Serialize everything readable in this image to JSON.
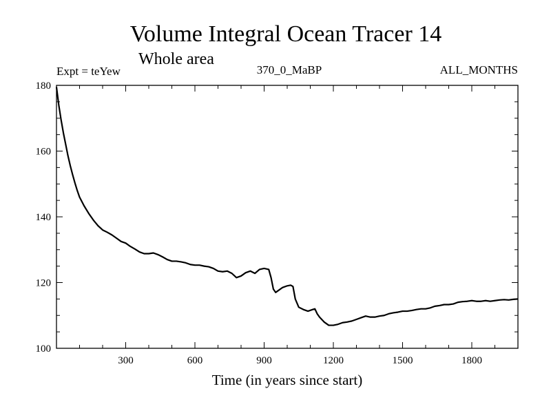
{
  "chart_data": {
    "type": "line",
    "title": "Volume Integral Ocean Tracer 14",
    "subtitle": "Whole area",
    "experiment_label": "Expt = teYew",
    "run_label": "370_0_MaBP",
    "period_label": "ALL_MONTHS",
    "xlabel": "Time (in years since start)",
    "ylabel": "",
    "xlim": [
      0,
      2000
    ],
    "ylim": [
      100,
      180
    ],
    "xticks": [
      300,
      600,
      900,
      1200,
      1500,
      1800
    ],
    "yticks": [
      100,
      120,
      140,
      160,
      180
    ],
    "grid": false,
    "series": [
      {
        "name": "Volume Integral Ocean Tracer 14",
        "x": [
          0,
          10,
          20,
          30,
          40,
          50,
          60,
          70,
          80,
          90,
          100,
          120,
          140,
          160,
          180,
          200,
          220,
          240,
          260,
          280,
          300,
          320,
          340,
          360,
          380,
          400,
          420,
          440,
          460,
          480,
          500,
          520,
          540,
          560,
          580,
          600,
          620,
          640,
          660,
          680,
          700,
          720,
          740,
          760,
          780,
          800,
          820,
          840,
          860,
          880,
          900,
          920,
          930,
          940,
          950,
          960,
          980,
          1000,
          1015,
          1025,
          1035,
          1050,
          1070,
          1090,
          1110,
          1120,
          1130,
          1140,
          1160,
          1180,
          1200,
          1220,
          1240,
          1260,
          1280,
          1300,
          1320,
          1340,
          1360,
          1380,
          1400,
          1420,
          1440,
          1460,
          1480,
          1500,
          1520,
          1540,
          1560,
          1580,
          1600,
          1620,
          1640,
          1660,
          1680,
          1700,
          1720,
          1740,
          1760,
          1780,
          1800,
          1820,
          1840,
          1860,
          1880,
          1900,
          1920,
          1940,
          1960,
          1980,
          2000
        ],
        "y": [
          179.5,
          174.0,
          169.5,
          165.5,
          162.0,
          158.5,
          155.5,
          152.8,
          150.3,
          148.0,
          146.0,
          143.3,
          141.0,
          139.0,
          137.3,
          136.0,
          135.3,
          134.5,
          133.5,
          132.5,
          132.0,
          131.0,
          130.2,
          129.3,
          128.8,
          128.8,
          129.0,
          128.5,
          127.8,
          127.0,
          126.5,
          126.5,
          126.3,
          126.0,
          125.5,
          125.3,
          125.3,
          125.0,
          124.8,
          124.3,
          123.5,
          123.3,
          123.5,
          122.8,
          121.5,
          122.0,
          123.0,
          123.5,
          122.8,
          124.0,
          124.3,
          124.0,
          121.5,
          118.0,
          117.0,
          117.5,
          118.5,
          119.0,
          119.2,
          118.8,
          115.0,
          112.5,
          111.8,
          111.3,
          111.8,
          112.0,
          110.5,
          109.5,
          108.0,
          107.0,
          107.0,
          107.3,
          107.8,
          108.0,
          108.3,
          108.8,
          109.3,
          109.8,
          109.5,
          109.5,
          109.8,
          110.0,
          110.5,
          110.8,
          111.0,
          111.3,
          111.3,
          111.5,
          111.8,
          112.0,
          112.0,
          112.3,
          112.8,
          113.0,
          113.3,
          113.3,
          113.5,
          114.0,
          114.2,
          114.3,
          114.5,
          114.3,
          114.3,
          114.5,
          114.3,
          114.5,
          114.7,
          114.8,
          114.7,
          114.9,
          115.0
        ]
      }
    ]
  }
}
